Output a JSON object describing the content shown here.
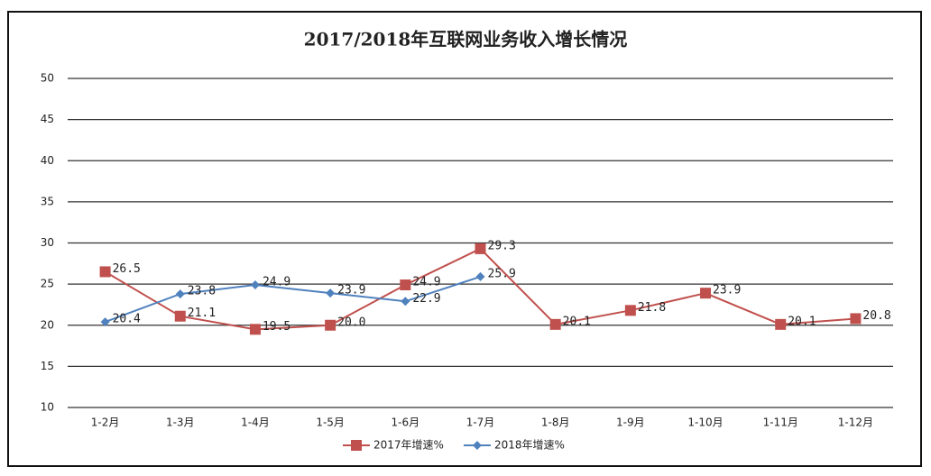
{
  "chart_data": {
    "type": "line",
    "title": "2017/2018年互联网业务收入增长情况",
    "categories": [
      "1-2月",
      "1-3月",
      "1-4月",
      "1-5月",
      "1-6月",
      "1-7月",
      "1-8月",
      "1-9月",
      "1-10月",
      "1-11月",
      "1-12月"
    ],
    "series": [
      {
        "name": "2017年增速%",
        "color": "#c0504d",
        "marker": "square",
        "values": [
          26.5,
          21.1,
          19.5,
          20.0,
          24.9,
          29.3,
          20.1,
          21.8,
          23.9,
          20.1,
          20.8
        ],
        "value_labels": [
          "26.5",
          "21.1",
          "19.5",
          "20.0",
          "24.9",
          "29.3",
          "20.1",
          "21.8",
          "23.9",
          "20.1",
          "20.8"
        ]
      },
      {
        "name": "2018年增速%",
        "color": "#4f81bd",
        "marker": "diamond",
        "values": [
          20.4,
          23.8,
          24.9,
          23.9,
          22.9,
          25.9,
          null,
          null,
          null,
          null,
          null
        ],
        "value_labels": [
          "20.4",
          "23.8",
          "24.9",
          "23.9",
          "22.9",
          "25.9",
          null,
          null,
          null,
          null,
          null
        ]
      }
    ],
    "ylim": [
      10,
      50
    ],
    "yticks": [
      10,
      15,
      20,
      25,
      30,
      35,
      40,
      45,
      50
    ],
    "grid": true,
    "legend": "bottom"
  }
}
